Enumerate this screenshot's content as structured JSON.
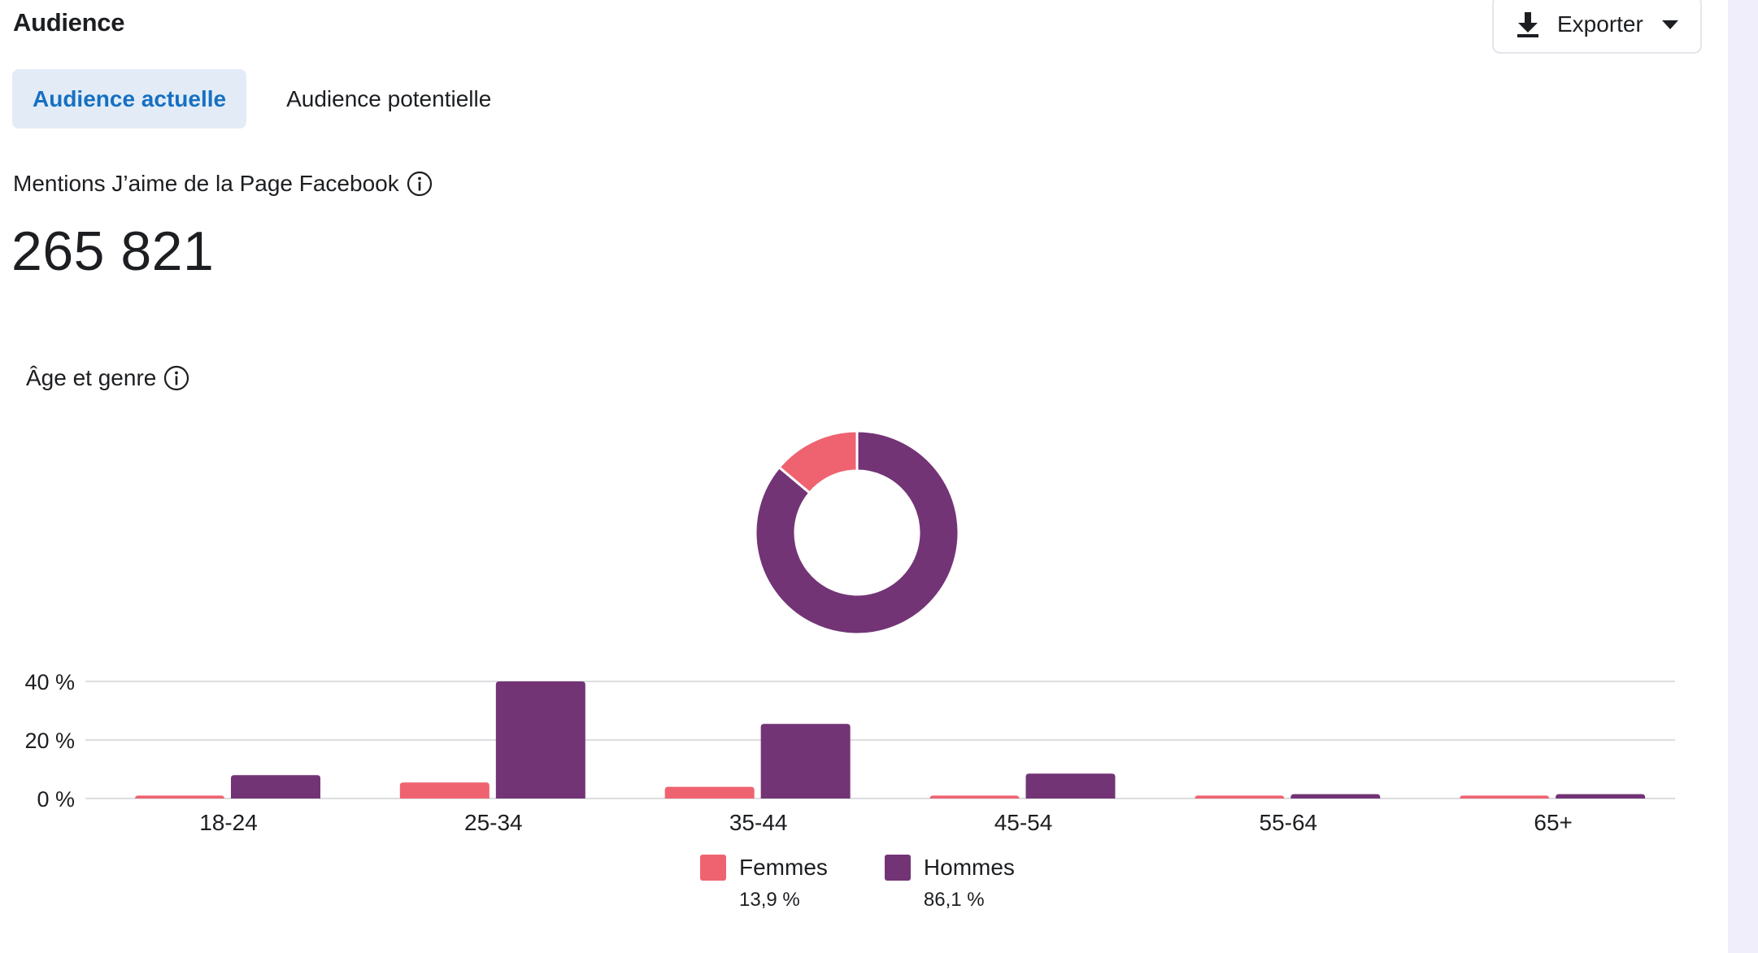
{
  "header": {
    "title": "Audience",
    "export_label": "Exporter",
    "export_icon": "download-icon",
    "caret_icon": "caret-down-icon"
  },
  "tabs": [
    {
      "label": "Audience actuelle",
      "active": true
    },
    {
      "label": "Audience potentielle",
      "active": false
    }
  ],
  "metric": {
    "label": "Mentions J’aime de la Page Facebook",
    "value": "265 821",
    "info_icon": "info-icon"
  },
  "age_gender": {
    "label": "Âge et genre",
    "info_icon": "info-icon"
  },
  "colors": {
    "femmes": "#ef6370",
    "hommes": "#733476",
    "grid": "#dcdde0",
    "tab_active_bg": "#e3ecf6",
    "tab_active_text": "#1670c2"
  },
  "legend": [
    {
      "name": "Femmes",
      "pct": "13,9 %"
    },
    {
      "name": "Hommes",
      "pct": "86,1 %"
    }
  ],
  "chart_data": [
    {
      "type": "pie",
      "donut": true,
      "labels": [
        "Femmes",
        "Hommes"
      ],
      "values": [
        13.9,
        86.1
      ]
    },
    {
      "type": "bar",
      "categories": [
        "18-24",
        "25-34",
        "35-44",
        "45-54",
        "55-64",
        "65+"
      ],
      "series": [
        {
          "name": "Femmes",
          "values": [
            1,
            5.5,
            4,
            1,
            1,
            1
          ]
        },
        {
          "name": "Hommes",
          "values": [
            8,
            40,
            25.5,
            8.5,
            1.5,
            1.5
          ]
        }
      ],
      "yticks": [
        0,
        20,
        40
      ],
      "ytick_labels": [
        "0 %",
        "20 %",
        "40 %"
      ],
      "ylim": [
        0,
        40
      ],
      "grid": true
    }
  ]
}
